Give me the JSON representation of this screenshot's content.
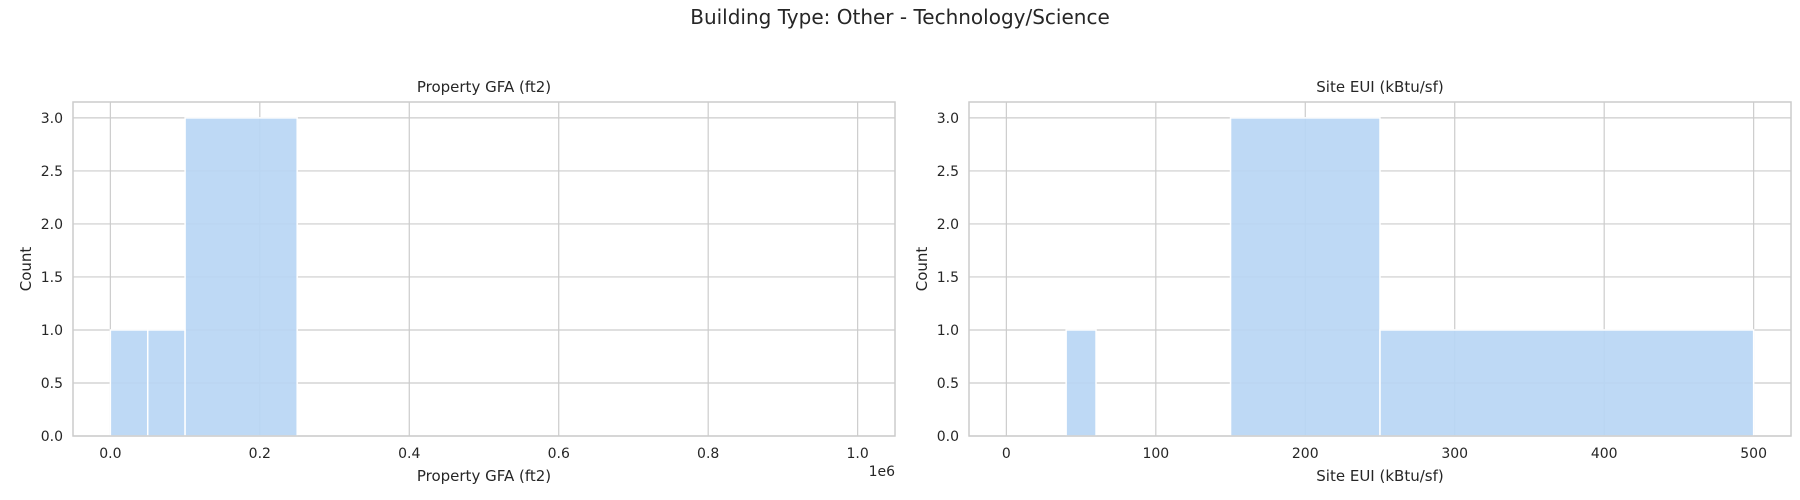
{
  "figure": {
    "suptitle": "Building Type: Other - Technology/Science"
  },
  "colors": {
    "bar": "#b8d6f4",
    "grid": "#cccccc",
    "spine": "#cccccc"
  },
  "chart_data": [
    {
      "type": "bar",
      "subtype": "histogram",
      "title": "Property GFA (ft2)",
      "xlabel": "Property GFA (ft2)",
      "ylabel": "Count",
      "x_offset_label": "1e6",
      "xlim": [
        -0.05,
        1.05
      ],
      "ylim": [
        0,
        3.15
      ],
      "xticks": [
        0.0,
        0.2,
        0.4,
        0.6,
        0.8,
        1.0
      ],
      "xtick_labels": [
        "0.0",
        "0.2",
        "0.4",
        "0.6",
        "0.8",
        "1.0"
      ],
      "yticks": [
        0.0,
        0.5,
        1.0,
        1.5,
        2.0,
        2.5,
        3.0
      ],
      "ytick_labels": [
        "0.0",
        "0.5",
        "1.0",
        "1.5",
        "2.0",
        "2.5",
        "3.0"
      ],
      "grid": true,
      "bins": [
        {
          "x0": 0.0,
          "x1": 0.05,
          "count": 1
        },
        {
          "x0": 0.05,
          "x1": 0.1,
          "count": 1
        },
        {
          "x0": 0.1,
          "x1": 0.25,
          "count": 3
        },
        {
          "x0": 0.25,
          "x1": 1.0,
          "count": 0
        }
      ]
    },
    {
      "type": "bar",
      "subtype": "histogram",
      "title": "Site EUI (kBtu/sf)",
      "xlabel": "Site EUI (kBtu/sf)",
      "ylabel": "Count",
      "x_offset_label": "",
      "xlim": [
        -25,
        525
      ],
      "ylim": [
        0,
        3.15
      ],
      "xticks": [
        0,
        100,
        200,
        300,
        400,
        500
      ],
      "xtick_labels": [
        "0",
        "100",
        "200",
        "300",
        "400",
        "500"
      ],
      "yticks": [
        0.0,
        0.5,
        1.0,
        1.5,
        2.0,
        2.5,
        3.0
      ],
      "ytick_labels": [
        "0.0",
        "0.5",
        "1.0",
        "1.5",
        "2.0",
        "2.5",
        "3.0"
      ],
      "grid": true,
      "bins": [
        {
          "x0": 0,
          "x1": 40,
          "count": 0
        },
        {
          "x0": 40,
          "x1": 60,
          "count": 1
        },
        {
          "x0": 60,
          "x1": 150,
          "count": 0
        },
        {
          "x0": 150,
          "x1": 250,
          "count": 3
        },
        {
          "x0": 250,
          "x1": 500,
          "count": 1
        }
      ]
    }
  ]
}
